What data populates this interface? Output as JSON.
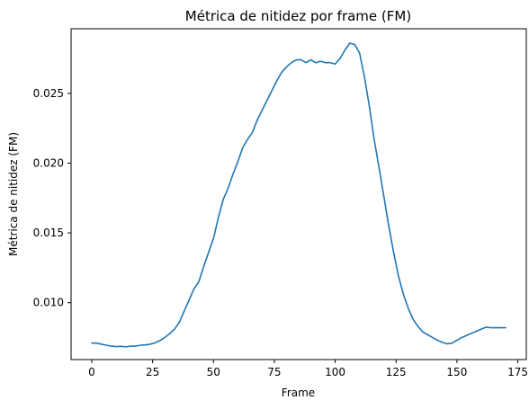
{
  "chart_data": {
    "type": "line",
    "title": "Métrica de nitidez por frame (FM)",
    "xlabel": "Frame",
    "ylabel": "Métrica de nitidez (FM)",
    "xlim": [
      -8.5,
      178.5
    ],
    "ylim": [
      0.00592,
      0.02963
    ],
    "xticks": [
      0,
      25,
      50,
      75,
      100,
      125,
      150,
      175
    ],
    "xtick_labels": [
      "0",
      "25",
      "50",
      "75",
      "100",
      "125",
      "150",
      "175"
    ],
    "yticks": [
      0.01,
      0.015,
      0.02,
      0.025
    ],
    "ytick_labels": [
      "0.010",
      "0.015",
      "0.020",
      "0.025"
    ],
    "grid": false,
    "legend": "none",
    "color": "#1f77b4",
    "series": [
      {
        "x": [
          0,
          2,
          4,
          6,
          8,
          10,
          12,
          14,
          16,
          18,
          20,
          22,
          24,
          26,
          28,
          30,
          32,
          34,
          36,
          38,
          40,
          42,
          44,
          46,
          48,
          50,
          52,
          54,
          56,
          58,
          60,
          62,
          64,
          66,
          68,
          70,
          72,
          74,
          76,
          78,
          80,
          82,
          84,
          86,
          88,
          90,
          92,
          94,
          96,
          98,
          100,
          102,
          104,
          106,
          108,
          110,
          112,
          114,
          116,
          118,
          120,
          122,
          124,
          126,
          128,
          130,
          132,
          134,
          136,
          138,
          140,
          142,
          144,
          146,
          148,
          150,
          152,
          154,
          156,
          158,
          160,
          162,
          164,
          166,
          168,
          170
        ],
        "y": [
          0.0071,
          0.0071,
          0.00702,
          0.00695,
          0.00688,
          0.00685,
          0.00687,
          0.00683,
          0.00688,
          0.00688,
          0.00695,
          0.00697,
          0.00702,
          0.00712,
          0.00728,
          0.0075,
          0.00778,
          0.0081,
          0.0086,
          0.0094,
          0.0102,
          0.011,
          0.0115,
          0.0126,
          0.0136,
          0.0146,
          0.0161,
          0.0174,
          0.0182,
          0.0192,
          0.0201,
          0.0211,
          0.0217,
          0.0222,
          0.0231,
          0.0238,
          0.0245,
          0.0252,
          0.0259,
          0.0265,
          0.0269,
          0.0272,
          0.0274,
          0.0274,
          0.0272,
          0.0274,
          0.0272,
          0.0273,
          0.0272,
          0.0272,
          0.0271,
          0.0275,
          0.0281,
          0.0286,
          0.0285,
          0.0279,
          0.0262,
          0.0241,
          0.0217,
          0.0197,
          0.0176,
          0.0155,
          0.0136,
          0.0119,
          0.0106,
          0.0096,
          0.0088,
          0.0083,
          0.0079,
          0.0077,
          0.0075,
          0.0073,
          0.00715,
          0.00705,
          0.0071,
          0.0073,
          0.0075,
          0.00765,
          0.0078,
          0.00795,
          0.0081,
          0.00825,
          0.0082,
          0.0082,
          0.0082,
          0.0082
        ]
      }
    ]
  }
}
